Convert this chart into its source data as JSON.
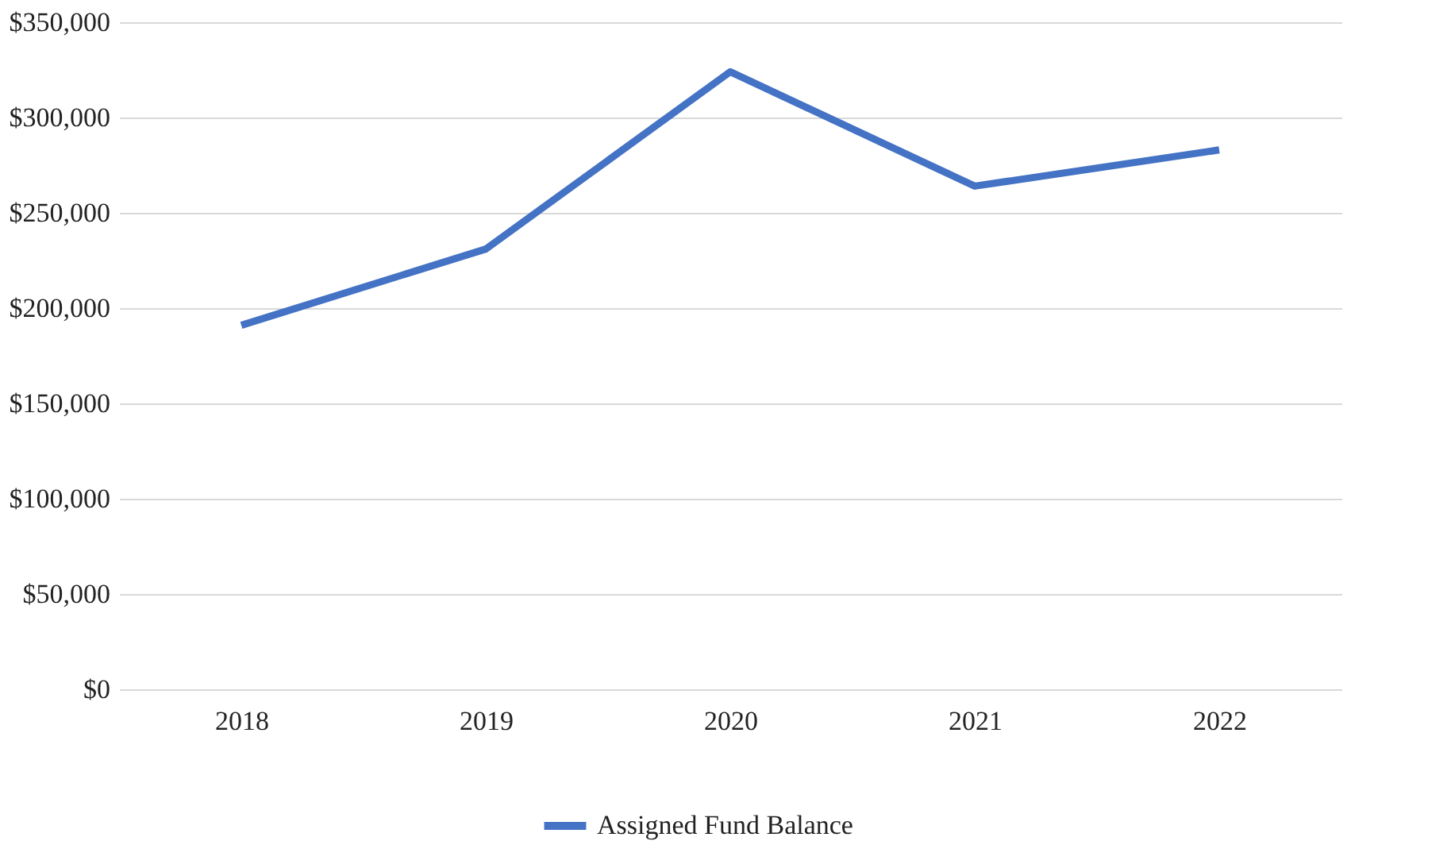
{
  "chart_data": {
    "type": "line",
    "categories": [
      "2018",
      "2019",
      "2020",
      "2021",
      "2022"
    ],
    "series": [
      {
        "name": "Assigned Fund Balance",
        "color": "#4472c4",
        "values": [
          191000,
          231000,
          324000,
          264000,
          283000
        ]
      }
    ],
    "ylim": [
      0,
      350000
    ],
    "yticks": [
      {
        "value": 0,
        "label": "$0"
      },
      {
        "value": 50000,
        "label": "$50,000"
      },
      {
        "value": 100000,
        "label": "$100,000"
      },
      {
        "value": 150000,
        "label": "$150,000"
      },
      {
        "value": 200000,
        "label": "$200,000"
      },
      {
        "value": 250000,
        "label": "$250,000"
      },
      {
        "value": 300000,
        "label": "$300,000"
      },
      {
        "value": 350000,
        "label": "$350,000"
      }
    ],
    "grid": "y",
    "legend": "bottom",
    "marker": "none",
    "line_style": "solid"
  }
}
